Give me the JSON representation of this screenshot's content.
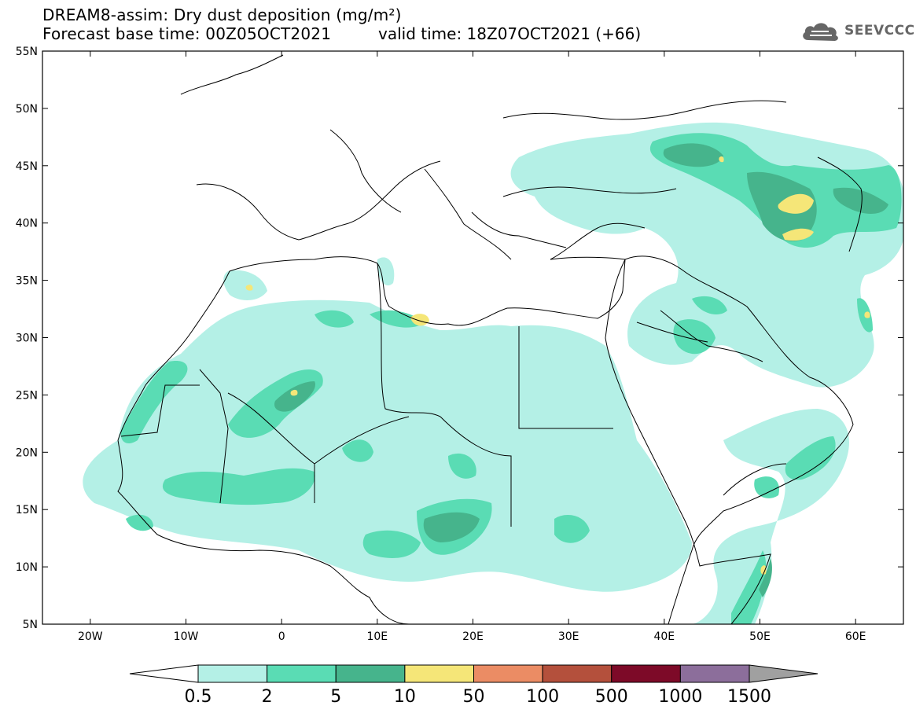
{
  "title": {
    "line1": "DREAM8-assim: Dry dust deposition (mg/m²)",
    "line2": "Forecast base time: 00Z05OCT2021",
    "valid": "valid time: 18Z07OCT2021 (+66)"
  },
  "logo": {
    "text": "SEEVCCC",
    "icon": "cloud-icon"
  },
  "map": {
    "lon_range": [
      -25,
      65
    ],
    "lat_range": [
      5,
      55
    ],
    "lon_ticks": [
      {
        "value": -20,
        "label": "20W"
      },
      {
        "value": -10,
        "label": "10W"
      },
      {
        "value": 0,
        "label": "0"
      },
      {
        "value": 10,
        "label": "10E"
      },
      {
        "value": 20,
        "label": "20E"
      },
      {
        "value": 30,
        "label": "30E"
      },
      {
        "value": 40,
        "label": "40E"
      },
      {
        "value": 50,
        "label": "50E"
      },
      {
        "value": 60,
        "label": "60E"
      }
    ],
    "lat_ticks": [
      {
        "value": 55,
        "label": "55N"
      },
      {
        "value": 50,
        "label": "50N"
      },
      {
        "value": 45,
        "label": "45N"
      },
      {
        "value": 40,
        "label": "40N"
      },
      {
        "value": 35,
        "label": "35N"
      },
      {
        "value": 30,
        "label": "30N"
      },
      {
        "value": 25,
        "label": "25N"
      },
      {
        "value": 20,
        "label": "20N"
      },
      {
        "value": 15,
        "label": "15N"
      },
      {
        "value": 10,
        "label": "10N"
      },
      {
        "value": 5,
        "label": "5N"
      }
    ]
  },
  "colorbar": {
    "levels": [
      "0.5",
      "2",
      "5",
      "10",
      "50",
      "100",
      "500",
      "1000",
      "1500"
    ],
    "colors": [
      "#b4f0e6",
      "#5adcb4",
      "#46b48c",
      "#f5e678",
      "#eb8c64",
      "#b4503c",
      "#7d0a28",
      "#8c6e9b",
      "#a0a0a0"
    ]
  },
  "legend_palette": {
    "c1": "#b4f0e6",
    "c2": "#5adcb4",
    "c3": "#46b48c",
    "c4": "#f5e678"
  }
}
